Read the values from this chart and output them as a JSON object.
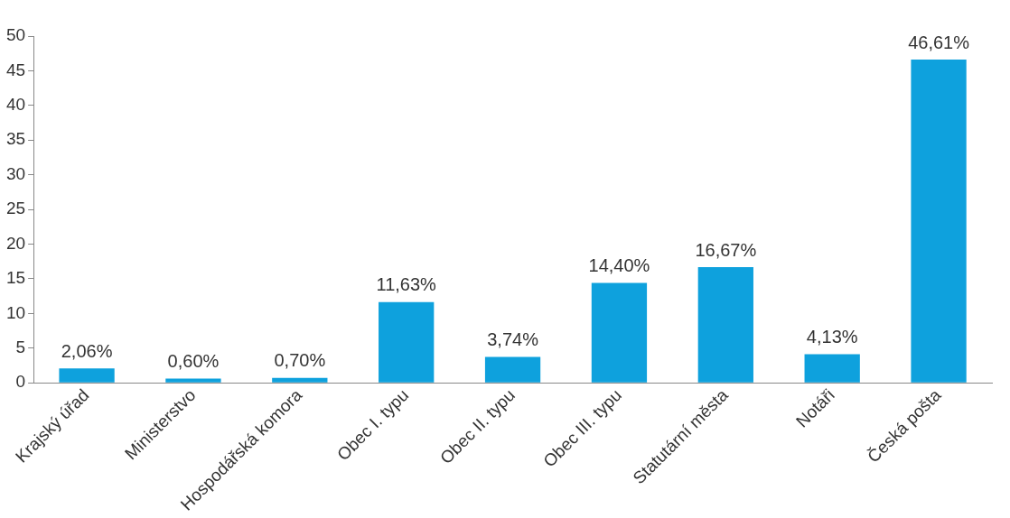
{
  "chart_data": {
    "type": "bar",
    "categories": [
      "Krajský úřad",
      "Ministerstvo",
      "Hospodářská komora",
      "Obec I. typu",
      "Obec II. typu",
      "Obec III. typu",
      "Statutární města",
      "Notáři",
      "Česká pošta"
    ],
    "values": [
      2.06,
      0.6,
      0.7,
      11.63,
      3.74,
      14.4,
      16.67,
      4.13,
      46.61
    ],
    "value_labels": [
      "2,06%",
      "0,60%",
      "0,70%",
      "11,63%",
      "3,74%",
      "14,40%",
      "16,67%",
      "4,13%",
      "46,61%"
    ],
    "color": "#0ea1dd",
    "ylim": [
      0,
      50
    ],
    "yticks": [
      0,
      5,
      10,
      15,
      20,
      25,
      30,
      35,
      40,
      45,
      50
    ],
    "grid": false,
    "legend": false
  }
}
